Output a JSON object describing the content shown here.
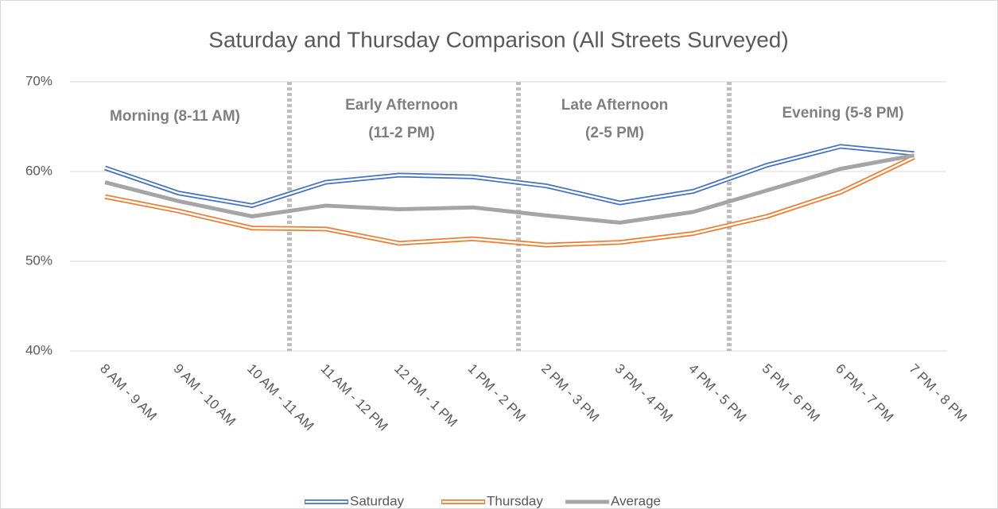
{
  "chart_data": {
    "type": "line",
    "title": "Saturday and Thursday Comparison (All Streets Surveyed)",
    "categories": [
      "8 AM - 9 AM",
      "9 AM - 10 AM",
      "10 AM - 11 AM",
      "11 AM - 12 PM",
      "12 PM - 1 PM",
      "1 PM - 2 PM",
      "2 PM - 3 PM",
      "3 PM - 4 PM",
      "4 PM - 5 PM",
      "5 PM - 6 PM",
      "6 PM - 7 PM",
      "7 PM - 8 PM"
    ],
    "series": [
      {
        "name": "Saturday",
        "color": "#4472c4",
        "values": [
          60.4,
          57.6,
          56.2,
          58.8,
          59.6,
          59.4,
          58.4,
          56.5,
          57.8,
          60.7,
          62.8,
          62.0
        ]
      },
      {
        "name": "Thursday",
        "color": "#ed7d31",
        "values": [
          57.2,
          55.6,
          53.7,
          53.6,
          52.0,
          52.5,
          51.8,
          52.1,
          53.1,
          55.0,
          57.7,
          61.6
        ]
      },
      {
        "name": "Average",
        "color": "#a5a5a5",
        "values": [
          58.8,
          56.7,
          55.0,
          56.2,
          55.8,
          56.0,
          55.1,
          54.3,
          55.5,
          57.9,
          60.3,
          61.8
        ]
      }
    ],
    "ylim": [
      40,
      70
    ],
    "yticks": [
      {
        "value": 40,
        "label": "40%"
      },
      {
        "value": 50,
        "label": "50%"
      },
      {
        "value": 60,
        "label": "60%"
      },
      {
        "value": 70,
        "label": "70%"
      }
    ],
    "grid": true,
    "legend": "bottom",
    "annotations": [
      {
        "lines": [
          "Morning (8-11 AM)"
        ]
      },
      {
        "lines": [
          "Early Afternoon",
          "(11-2 PM)"
        ]
      },
      {
        "lines": [
          "Late Afternoon",
          "(2-5 PM)"
        ]
      },
      {
        "lines": [
          "Evening (5-8 PM)"
        ]
      }
    ]
  }
}
